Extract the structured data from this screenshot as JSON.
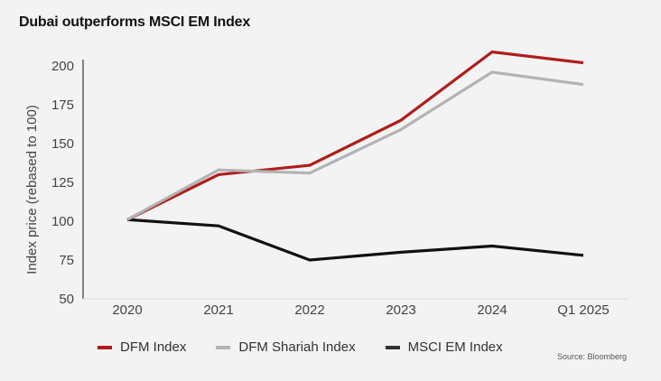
{
  "chart_data": {
    "type": "line",
    "title": "Dubai outperforms MSCI EM Index",
    "xlabel": "",
    "ylabel": "Index price (rebased to 100)",
    "ylim": [
      50,
      200
    ],
    "yticks": [
      "50",
      "75",
      "100",
      "125",
      "150",
      "175",
      "200"
    ],
    "categories": [
      "2020",
      "2021",
      "2022",
      "2023",
      "2024",
      "Q1 2025"
    ],
    "grid": false,
    "legend_position": "bottom-left",
    "series": [
      {
        "name": "DFM Index",
        "color": "#b01c1c",
        "values": [
          101,
          130,
          136,
          165,
          209,
          202
        ]
      },
      {
        "name": "DFM Shariah Index",
        "color": "#b3b3b3",
        "values": [
          101,
          133,
          131,
          159,
          196,
          188
        ]
      },
      {
        "name": "MSCI EM Index",
        "color": "#111111",
        "values": [
          101,
          97,
          75,
          80,
          84,
          78
        ]
      }
    ],
    "source": "Source: Bloomberg"
  }
}
